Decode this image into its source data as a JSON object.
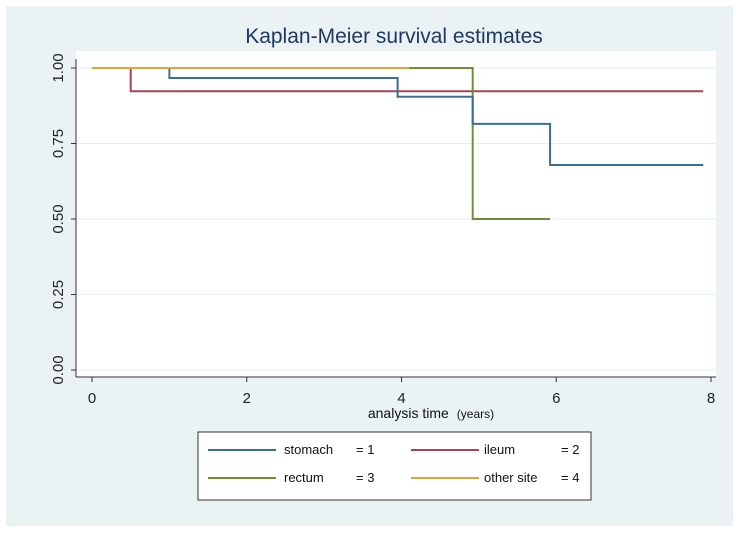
{
  "chart_data": {
    "type": "line",
    "title": "Kaplan-Meier survival estimates",
    "xlabel": "analysis time",
    "xlabel_unit": "(years)",
    "ylabel": "",
    "xlim": [
      0,
      8
    ],
    "ylim": [
      0,
      1
    ],
    "xticks": [
      "0",
      "2",
      "4",
      "6",
      "8"
    ],
    "yticks": [
      "0.00",
      "0.25",
      "0.50",
      "0.75",
      "1.00"
    ],
    "grid": "horizontal",
    "legend_position": "bottom",
    "series": [
      {
        "name": "stomach",
        "code": "= 1",
        "color": "#3a6e94",
        "step_x": [
          0,
          1.0,
          3.95,
          4.92,
          5.92,
          7.9
        ],
        "step_y": [
          1.0,
          0.967,
          0.905,
          0.815,
          0.679,
          0.679
        ]
      },
      {
        "name": "ileum",
        "code": "= 2",
        "color": "#a8434f",
        "step_x": [
          0,
          0.5,
          7.9
        ],
        "step_y": [
          1.0,
          0.923,
          0.923
        ]
      },
      {
        "name": "rectum",
        "code": "= 3",
        "color": "#6b8e3a",
        "step_x": [
          0,
          4.92,
          5.92
        ],
        "step_y": [
          1.0,
          0.5,
          0.5
        ]
      },
      {
        "name": "other site",
        "code": "= 4",
        "color": "#e6a13a",
        "step_x": [
          0,
          4.1
        ],
        "step_y": [
          1.0,
          1.0
        ]
      }
    ]
  }
}
